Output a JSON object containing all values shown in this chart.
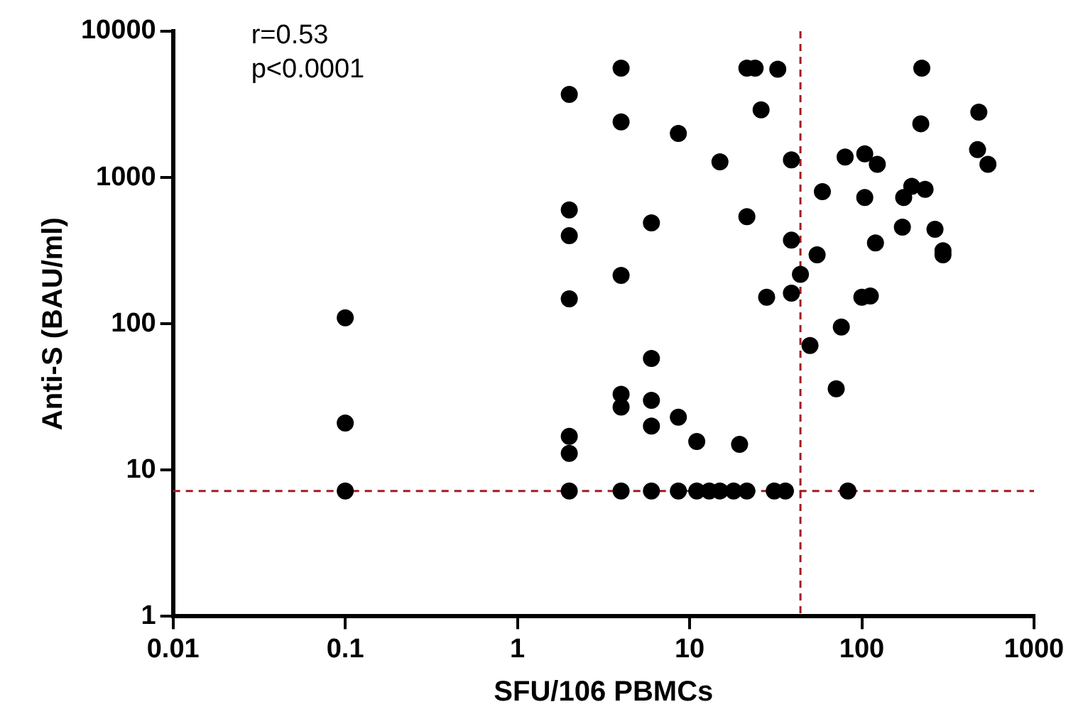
{
  "chart_data": {
    "type": "scatter",
    "xlabel": "SFU/106 PBMCs",
    "ylabel": "Anti-S (BAU/ml)",
    "annotations": [
      "r=0.53",
      "p<0.0001"
    ],
    "log": "xy",
    "xlim": [
      0.01,
      1000
    ],
    "ylim": [
      1,
      10000
    ],
    "xticks": [
      0.01,
      0.1,
      1,
      10,
      100,
      1000
    ],
    "yticks": [
      1,
      10,
      100,
      1000,
      10000
    ],
    "legend": false,
    "marker": "circle",
    "ref_lines": [
      {
        "axis": "y",
        "value": 7.2,
        "color": "#a01c24",
        "line_style": "dashed"
      },
      {
        "axis": "x",
        "value": 44,
        "color": "#a01c24",
        "line_style": "dashed"
      }
    ],
    "series": [
      {
        "color": "#000000",
        "x": [
          0.1,
          0.1,
          0.1,
          2,
          2,
          2,
          2,
          2,
          2,
          2,
          4,
          4,
          4,
          4,
          4,
          4,
          6,
          6,
          6,
          6,
          6,
          8.6,
          8.6,
          8.6,
          11,
          11,
          13,
          15,
          15,
          18,
          19.5,
          21.5,
          21.5,
          21.5,
          24,
          26,
          28,
          31,
          32.5,
          36,
          39,
          39,
          39,
          44,
          50,
          55,
          59,
          71,
          76,
          80,
          83,
          100,
          112,
          104,
          104,
          123,
          120,
          172,
          175,
          195,
          223,
          220,
          233,
          266,
          296,
          296,
          470,
          478,
          540
        ],
        "values": [
          110,
          21,
          7.2,
          3700,
          600,
          400,
          148,
          17,
          13,
          7.2,
          5600,
          2400,
          214,
          33,
          27,
          7.2,
          490,
          58,
          30,
          20,
          7.2,
          2000,
          23,
          7.2,
          15.7,
          7.2,
          7.2,
          1280,
          7.2,
          7.2,
          15,
          5600,
          540,
          7.2,
          5600,
          2900,
          152,
          7.2,
          5500,
          7.2,
          1320,
          373,
          162,
          218,
          71,
          296,
          800,
          36,
          95,
          1380,
          7.2,
          152,
          155,
          1450,
          730,
          1230,
          357,
          458,
          730,
          870,
          5600,
          2330,
          830,
          443,
          316,
          296,
          1550,
          2800,
          1230
        ]
      }
    ]
  }
}
